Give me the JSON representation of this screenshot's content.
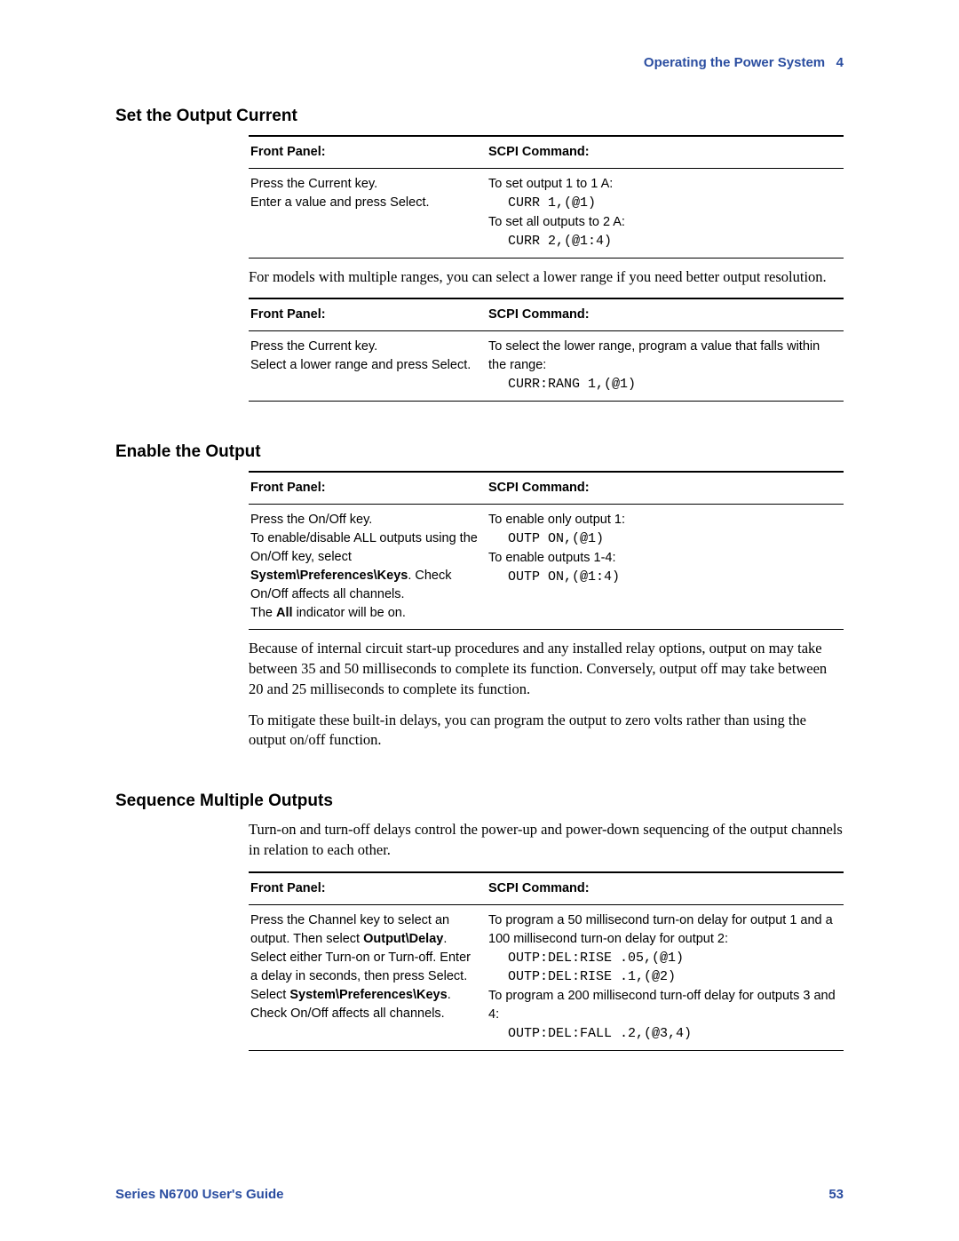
{
  "header": {
    "title": "Operating the Power System",
    "chapter": "4"
  },
  "footer": {
    "guide": "Series N6700 User's Guide",
    "page": "53"
  },
  "sec1": {
    "heading": "Set the Output Current",
    "tbl1": {
      "h1": "Front Panel:",
      "h2": "SCPI Command:",
      "fp_l1": "Press the Current key.",
      "fp_l2": "Enter a value and press Select.",
      "sc_l1": "To set output 1 to 1 A:",
      "sc_c1": "CURR 1,(@1)",
      "sc_l2": "To set all outputs to 2 A:",
      "sc_c2": "CURR 2,(@1:4)"
    },
    "para1": "For models with multiple ranges, you can select a lower range if you need better output resolution.",
    "tbl2": {
      "h1": "Front Panel:",
      "h2": "SCPI Command:",
      "fp_l1": "Press the Current key.",
      "fp_l2": "Select a lower range and press Select.",
      "sc_l1": "To select the lower range, program a value that falls within the range:",
      "sc_c1": "CURR:RANG 1,(@1)"
    }
  },
  "sec2": {
    "heading": "Enable the Output",
    "tbl": {
      "h1": "Front Panel:",
      "h2": "SCPI Command:",
      "fp_l1": "Press the On/Off key.",
      "fp_l2a": "To enable/disable ALL outputs using the On/Off key, select ",
      "fp_l2b": "System\\Preferences\\Keys",
      "fp_l2c": ". Check On/Off affects all channels.",
      "fp_l3a": "The ",
      "fp_l3b": "All",
      "fp_l3c": " indicator will be on.",
      "sc_l1": "To enable only output 1:",
      "sc_c1": "OUTP ON,(@1)",
      "sc_l2": "To enable outputs 1-4:",
      "sc_c2": "OUTP ON,(@1:4)"
    },
    "para1": "Because of internal circuit start-up procedures and any installed relay options, output on may take between 35 and 50 milliseconds to complete its function. Conversely, output off may take between 20 and 25 milliseconds to complete its function.",
    "para2": "To mitigate these built-in delays, you can program the output to zero volts rather than using the output on/off function."
  },
  "sec3": {
    "heading": "Sequence Multiple Outputs",
    "para1": "Turn-on and turn-off delays control the power-up and power-down sequencing of the output channels in relation to each other.",
    "tbl": {
      "h1": "Front Panel:",
      "h2": "SCPI Command:",
      "fp_l1a": "Press the Channel key to select an output. Then select ",
      "fp_l1b": "Output\\Delay",
      "fp_l1c": ".",
      "fp_l2": "Select either Turn-on or Turn-off. Enter a delay in seconds, then press Select.",
      "fp_l3a": "Select ",
      "fp_l3b": "System\\Preferences\\Keys",
      "fp_l3c": ". Check On/Off affects all channels.",
      "sc_l1": "To program a 50 millisecond turn-on delay for output 1 and a 100 millisecond turn-on delay for output 2:",
      "sc_c1": "OUTP:DEL:RISE .05,(@1)",
      "sc_c2": "OUTP:DEL:RISE .1,(@2)",
      "sc_l2": "To program a 200 millisecond turn-off delay for outputs 3 and 4:",
      "sc_c3": "OUTP:DEL:FALL .2,(@3,4)"
    }
  }
}
